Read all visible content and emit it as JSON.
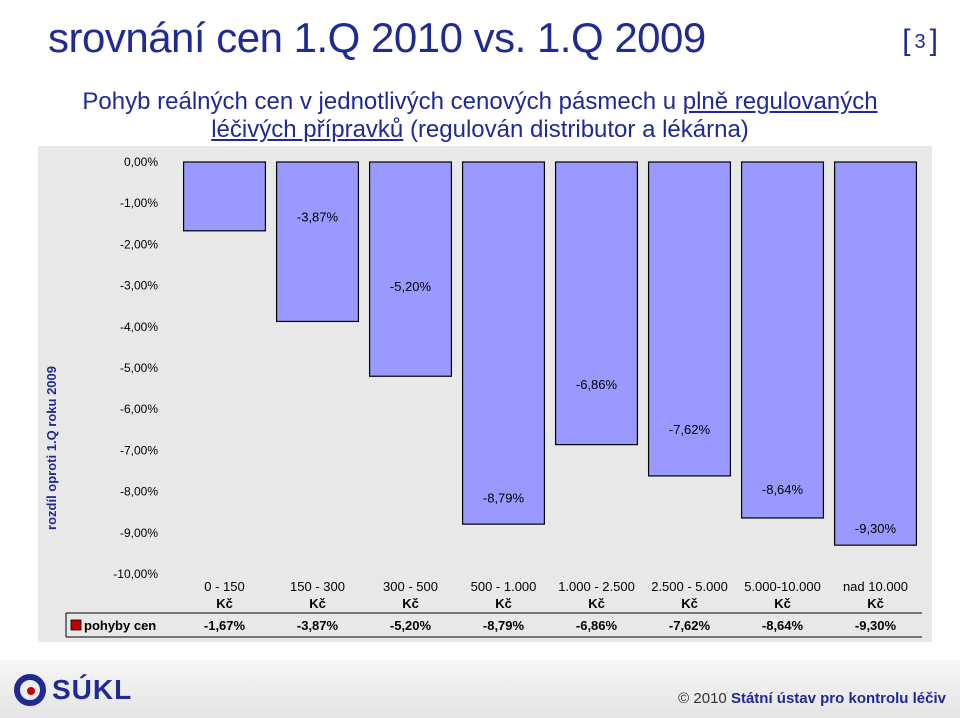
{
  "header": {
    "title": "srovnání cen 1.Q 2010 vs. 1.Q 2009",
    "slide_number": "3",
    "bracket_open": "[",
    "bracket_close": "]",
    "subtitle_line1_a": "Pohyb reálných cen v jednotlivých cenových pásmech u ",
    "subtitle_line1_b": "plně regulovaných",
    "subtitle_line2_a": "léčivých přípravků",
    "subtitle_line2_b": " (regulován distributor a lékárna)"
  },
  "colors": {
    "title": "#1f2a93",
    "bar_fill": "#9999ff",
    "bar_stroke": "#000000",
    "plot_bg": "#e8e8e8",
    "legend_key": "#c00000"
  },
  "chart_data": {
    "type": "bar",
    "categories": [
      "0 - 150 Kč",
      "150 - 300 Kč",
      "300 - 500 Kč",
      "500 - 1.000 Kč",
      "1.000 - 2.500 Kč",
      "2.500 - 5.000 Kč",
      "5.000-10.000 Kč",
      "nad 10.000 Kč"
    ],
    "category_lines": [
      [
        "0 - 150",
        "Kč"
      ],
      [
        "150 - 300",
        "Kč"
      ],
      [
        "300 - 500",
        "Kč"
      ],
      [
        "500 - 1.000",
        "Kč"
      ],
      [
        "1.000 - 2.500",
        "Kč"
      ],
      [
        "2.500 - 5.000",
        "Kč"
      ],
      [
        "5.000-10.000",
        "Kč"
      ],
      [
        "nad 10.000",
        "Kč"
      ]
    ],
    "series": [
      {
        "name": "pohyby cen",
        "values": [
          -1.67,
          -3.87,
          -5.2,
          -8.79,
          -6.86,
          -7.62,
          -8.64,
          -9.3
        ]
      }
    ],
    "data_labels": [
      "-1,67%",
      "-3,87%",
      "-5,20%",
      "-8,79%",
      "-6,86%",
      "-7,62%",
      "-8,64%",
      "-9,30%"
    ],
    "ylabel": "rozdíl oproti 1.Q roku 2009",
    "ylim": [
      -10,
      0
    ],
    "yticks": [
      0,
      -1,
      -2,
      -3,
      -4,
      -5,
      -6,
      -7,
      -8,
      -9,
      -10
    ],
    "ytick_labels": [
      "0,00%",
      "-1,00%",
      "-2,00%",
      "-3,00%",
      "-4,00%",
      "-5,00%",
      "-6,00%",
      "-7,00%",
      "-8,00%",
      "-9,00%",
      "-10,00%"
    ],
    "legend_placement": "data-table",
    "grid": false
  },
  "footer": {
    "logo_text": "SÚKL",
    "copyright_symbol": "©",
    "year": "2010",
    "org": "Státní ústav pro kontrolu léčiv"
  }
}
